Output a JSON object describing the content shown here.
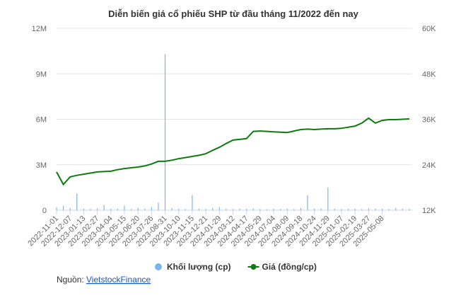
{
  "chart_data": {
    "type": "combo",
    "title": "Diễn biến giá cổ phiếu SHP từ đầu tháng 11/2022 đến nay",
    "categories": [
      "2022-11-01",
      null,
      "2022-12-07",
      null,
      "2023-01-13",
      null,
      "2023-02-27",
      null,
      "2023-04-04",
      null,
      "2023-05-15",
      null,
      "2023-06-20",
      null,
      "2023-07-26",
      null,
      "2023-08-31",
      null,
      "2023-10-10",
      null,
      "2023-11-15",
      null,
      "2023-12-21",
      null,
      "2024-01-29",
      null,
      "2024-03-12",
      null,
      "2024-04-17",
      null,
      "2024-05-29",
      null,
      "2024-07-04",
      null,
      "2024-08-09",
      null,
      "2024-09-18",
      null,
      "2024-10-24",
      null,
      "2024-11-29",
      null,
      "2025-01-07",
      null,
      "2025-02-19",
      null,
      "2025-03-27",
      null,
      "2025-05-08",
      null,
      null,
      null,
      null
    ],
    "series": [
      {
        "name": "Khối lượng (cp)",
        "kind": "bar",
        "color": "#7cb5ec",
        "values": [
          200000,
          300000,
          150000,
          1100000,
          100000,
          80000,
          120000,
          350000,
          90000,
          100000,
          300000,
          80000,
          150000,
          100000,
          200000,
          500000,
          10300000,
          150000,
          100000,
          80000,
          1000000,
          100000,
          80000,
          150000,
          200000,
          100000,
          80000,
          100000,
          90000,
          120000,
          80000,
          70000,
          90000,
          80000,
          100000,
          80000,
          150000,
          1000000,
          100000,
          120000,
          1500000,
          100000,
          80000,
          90000,
          100000,
          80000,
          120000,
          100000,
          90000,
          80000,
          150000,
          100000,
          80000
        ]
      },
      {
        "name": "Giá (đồng/cp)",
        "kind": "line",
        "axis": "y2",
        "color": "#0f7b0f",
        "values": [
          22100,
          18800,
          20800,
          21200,
          21500,
          21800,
          22100,
          22200,
          22300,
          22700,
          23000,
          23200,
          23400,
          23700,
          24200,
          24900,
          24900,
          25200,
          25600,
          25900,
          26200,
          26500,
          26900,
          27800,
          28600,
          29600,
          30500,
          30700,
          30900,
          32800,
          32900,
          32800,
          32700,
          32600,
          32500,
          32900,
          33300,
          33400,
          33300,
          33400,
          33500,
          33500,
          33600,
          33900,
          34200,
          35000,
          36300,
          35000,
          35700,
          35900,
          35900,
          36000,
          36100
        ]
      }
    ],
    "ylim": [
      0,
      12000000
    ],
    "yticks": [
      0,
      {
        "value": 3000000,
        "label": "3M"
      },
      {
        "value": 6000000,
        "label": "6M"
      },
      {
        "value": 9000000,
        "label": "9M"
      },
      {
        "value": 12000000,
        "label": "12M"
      }
    ],
    "y2lim": [
      12000,
      60000
    ],
    "y2ticks": [
      {
        "value": 12000,
        "label": "12K"
      },
      {
        "value": 24000,
        "label": "24K"
      },
      {
        "value": 36000,
        "label": "36K"
      },
      {
        "value": 48000,
        "label": "48K"
      },
      {
        "value": 60000,
        "label": "60K"
      }
    ],
    "grid": true,
    "source_label": "Nguồn:",
    "source_link": "VietstockFinance"
  }
}
